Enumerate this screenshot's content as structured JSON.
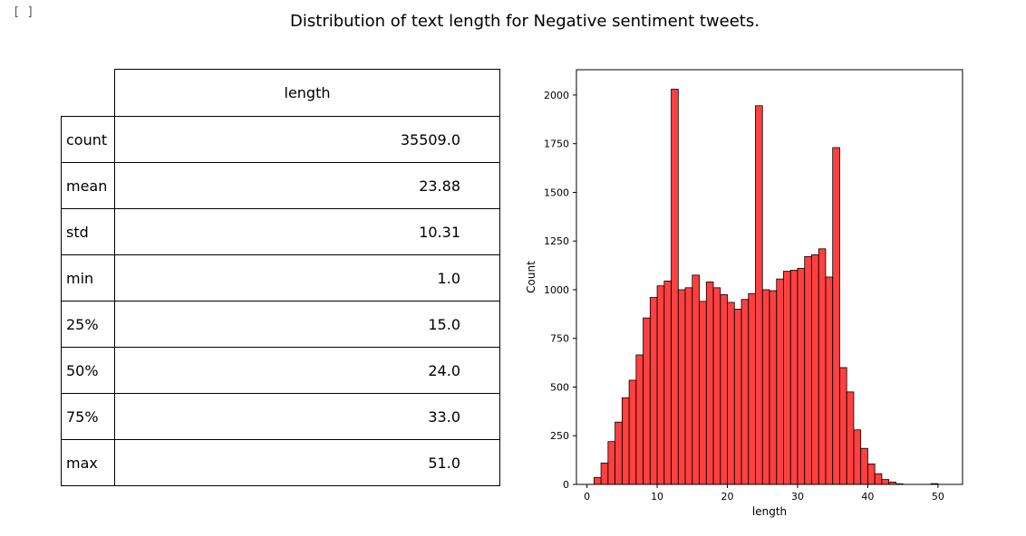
{
  "cell": {
    "prompt": "[ ]"
  },
  "figure": {
    "title": "Distribution of text length for Negative sentiment tweets."
  },
  "table": {
    "column": "length",
    "rows": [
      {
        "label": "count",
        "value": "35509.0"
      },
      {
        "label": "mean",
        "value": "23.88"
      },
      {
        "label": "std",
        "value": "10.31"
      },
      {
        "label": "min",
        "value": "1.0"
      },
      {
        "label": "25%",
        "value": "15.0"
      },
      {
        "label": "50%",
        "value": "24.0"
      },
      {
        "label": "75%",
        "value": "33.0"
      },
      {
        "label": "max",
        "value": "51.0"
      }
    ]
  },
  "chart_data": {
    "type": "bar",
    "xlabel": "length",
    "ylabel": "Count",
    "xlim": [
      -1.5,
      53.5
    ],
    "ylim": [
      0,
      2130
    ],
    "xticks": [
      0,
      10,
      20,
      30,
      40,
      50
    ],
    "yticks": [
      0,
      250,
      500,
      750,
      1000,
      1250,
      1500,
      1750,
      2000
    ],
    "bar_color": "#ff0000",
    "bin_edges_start": 1,
    "bin_width": 1,
    "values": [
      35,
      110,
      220,
      320,
      445,
      535,
      665,
      855,
      960,
      1020,
      1045,
      2030,
      1000,
      1010,
      1075,
      940,
      1040,
      1010,
      975,
      935,
      900,
      950,
      980,
      1945,
      1000,
      995,
      1055,
      1095,
      1100,
      1110,
      1170,
      1180,
      1210,
      1065,
      1730,
      600,
      475,
      280,
      185,
      105,
      55,
      25,
      12,
      3,
      0,
      0,
      0,
      0,
      4,
      0
    ]
  }
}
